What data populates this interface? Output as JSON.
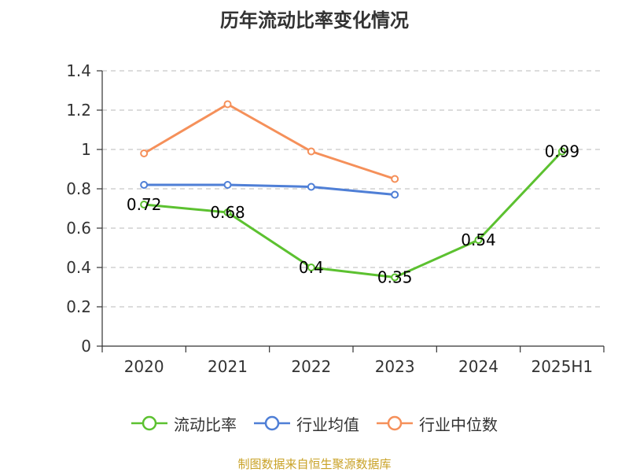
{
  "chart_data": {
    "type": "line",
    "title": "历年流动比率变化情况",
    "categories": [
      "2020",
      "2021",
      "2022",
      "2023",
      "2024",
      "2025H1"
    ],
    "ylim": [
      0,
      1.4
    ],
    "yticks": [
      "0",
      "0.2",
      "0.4",
      "0.6",
      "0.8",
      "1",
      "1.2",
      "1.4"
    ],
    "grid": true,
    "legend_position": "bottom",
    "series": [
      {
        "name": "流动比率",
        "color": "#5cc130",
        "values": [
          0.72,
          0.68,
          0.4,
          0.35,
          0.54,
          0.99
        ],
        "labels": [
          "0.72",
          "0.68",
          "0.4",
          "0.35",
          "0.54",
          "0.99"
        ]
      },
      {
        "name": "行业均值",
        "color": "#4f7fd6",
        "values": [
          0.82,
          0.82,
          0.81,
          0.77,
          null,
          null
        ]
      },
      {
        "name": "行业中位数",
        "color": "#f5905a",
        "values": [
          0.98,
          1.23,
          0.99,
          0.85,
          null,
          null
        ]
      }
    ]
  },
  "source": "制图数据来自恒生聚源数据库"
}
